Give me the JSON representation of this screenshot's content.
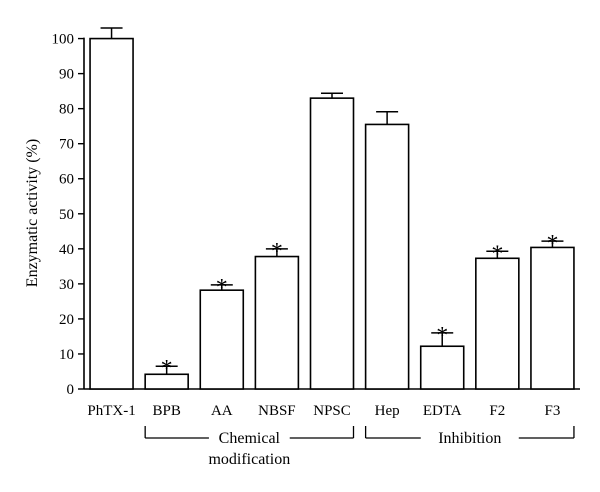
{
  "chart_data": {
    "type": "bar",
    "ylabel": "Enzymatic activity (%)",
    "ylim": [
      0,
      110
    ],
    "yticks": [
      0,
      10,
      20,
      30,
      40,
      50,
      60,
      70,
      80,
      90,
      100
    ],
    "categories": [
      "PhTX-1",
      "BPB",
      "AA",
      "NBSF",
      "NPSC",
      "Hep",
      "EDTA",
      "F2",
      "F3"
    ],
    "values": [
      100,
      4.2,
      28.2,
      37.8,
      83,
      75.5,
      12.2,
      37.3,
      40.4
    ],
    "errors": [
      3,
      2.3,
      1.5,
      2.2,
      1.4,
      3.6,
      3.8,
      2,
      1.8
    ],
    "significant": [
      false,
      true,
      true,
      true,
      false,
      false,
      true,
      true,
      true
    ],
    "significance_marker": "*",
    "bar_fill": "#ffffff",
    "bar_stroke": "#000000",
    "grid": false,
    "groups": [
      {
        "label_lines": [
          "Chemical",
          "modification"
        ],
        "start": 1,
        "end": 4
      },
      {
        "label_lines": [
          "Inhibition"
        ],
        "start": 5,
        "end": 8
      }
    ]
  }
}
